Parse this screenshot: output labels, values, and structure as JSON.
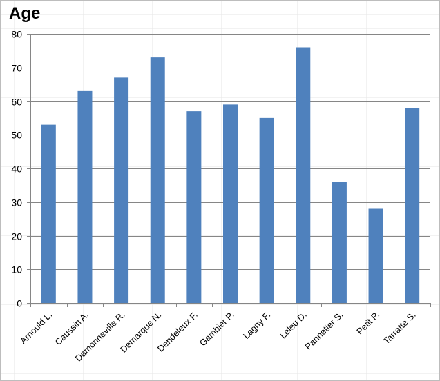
{
  "chart_data": {
    "type": "bar",
    "title": "Age",
    "xlabel": "",
    "ylabel": "",
    "categories": [
      "Arnould L.",
      "Caussin A.",
      "Damonneville R.",
      "Demarque N.",
      "Dendeleux F.",
      "Gambier P.",
      "Lagny F.",
      "Leleu D.",
      "Pannetier S.",
      "Petit P.",
      "Tarratte S."
    ],
    "values": [
      53,
      63,
      67,
      73,
      57,
      59,
      55,
      76,
      36,
      28,
      58
    ],
    "ylim": [
      0,
      80
    ],
    "yticks": [
      0,
      10,
      20,
      30,
      40,
      50,
      60,
      70,
      80
    ],
    "grid": true,
    "legend": "none",
    "bar_color": "#4f81bd",
    "gridline_color": "#868686"
  }
}
